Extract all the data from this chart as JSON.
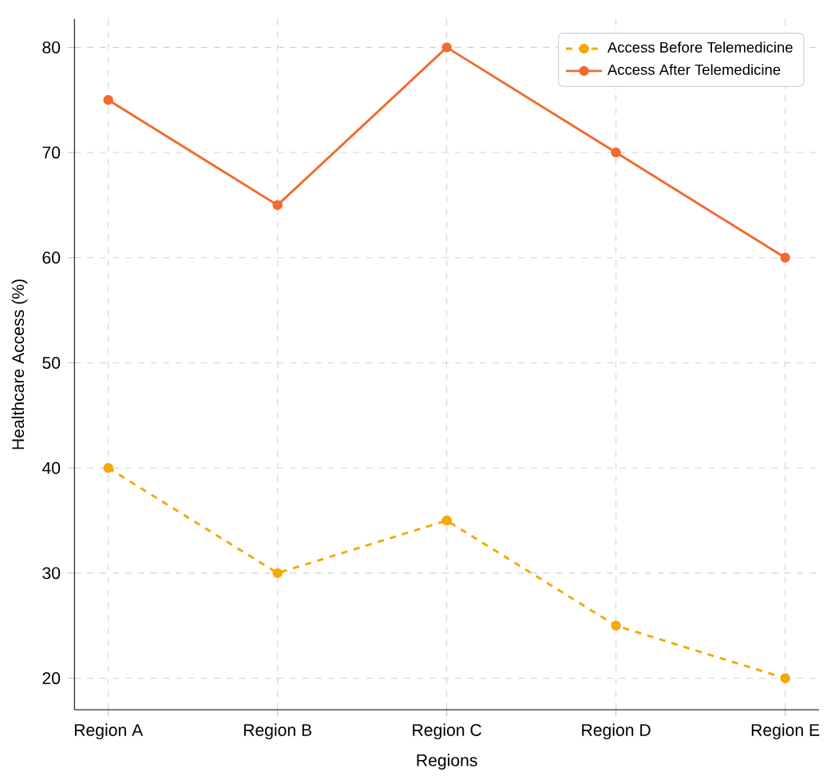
{
  "chart_data": {
    "type": "line",
    "xlabel": "Regions",
    "ylabel": "Healthcare Access (%)",
    "categories": [
      "Region A",
      "Region B",
      "Region C",
      "Region D",
      "Region E"
    ],
    "series": [
      {
        "name": "Access Before Telemedicine",
        "color": "#f5a800",
        "line_style": "dashed",
        "values": [
          40,
          30,
          35,
          25,
          20
        ]
      },
      {
        "name": "Access After Telemedicine",
        "color": "#f26a2e",
        "line_style": "solid",
        "values": [
          75,
          65,
          80,
          70,
          60
        ]
      }
    ],
    "ylim": [
      17,
      82.7
    ],
    "yticks": [
      20,
      30,
      40,
      50,
      60,
      70,
      80
    ],
    "grid": true,
    "legend": "top right",
    "marker": "circle"
  }
}
